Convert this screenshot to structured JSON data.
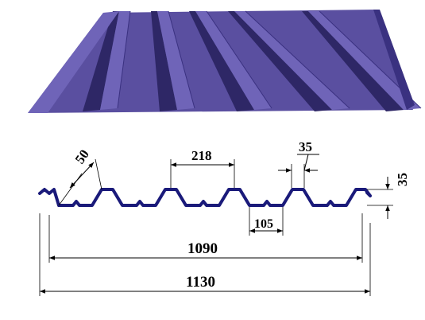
{
  "colors": {
    "sheet_face": "#5a4fa0",
    "sheet_light": "#6f64b8",
    "sheet_shadow": "#2e2766",
    "sheet_edge": "#3a3180",
    "profile_line": "#1a1a7a",
    "dimension_line": "#000000",
    "background": "#ffffff"
  },
  "dimensions": {
    "rib_slant": "50",
    "rib_pitch": "218",
    "rib_top": "35",
    "profile_height": "35",
    "valley_bottom": "105",
    "effective_width": "1090",
    "total_width": "1130"
  }
}
